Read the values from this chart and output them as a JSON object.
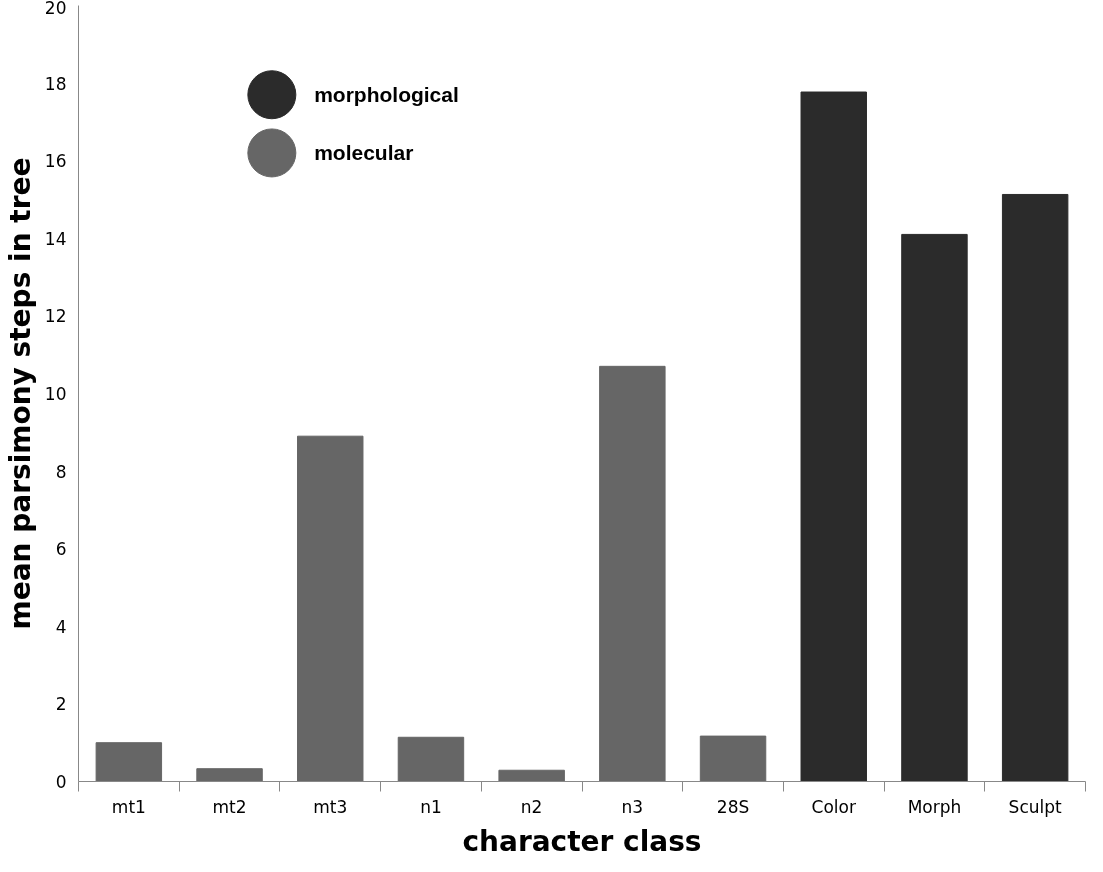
{
  "chart_data": {
    "type": "bar",
    "xlabel": "character class",
    "ylabel": "mean parsimony steps in tree",
    "categories": [
      "mt1",
      "mt2",
      "mt3",
      "n1",
      "n2",
      "n3",
      "28S",
      "Color",
      "Morph",
      "Sculpt"
    ],
    "series": [
      {
        "name": "morphological",
        "color": "#2b2b2b",
        "values": [
          null,
          null,
          null,
          null,
          null,
          null,
          null,
          17.77,
          14.1,
          15.13
        ]
      },
      {
        "name": "molecular",
        "color": "#666666",
        "values": [
          1.0,
          0.33,
          8.9,
          1.14,
          0.29,
          10.7,
          1.17,
          null,
          null,
          null
        ]
      }
    ],
    "ylim": [
      0,
      20
    ],
    "yticks": [
      0,
      2,
      4,
      6,
      8,
      10,
      12,
      14,
      16,
      18,
      20
    ],
    "grid": false,
    "legend": "top left"
  }
}
